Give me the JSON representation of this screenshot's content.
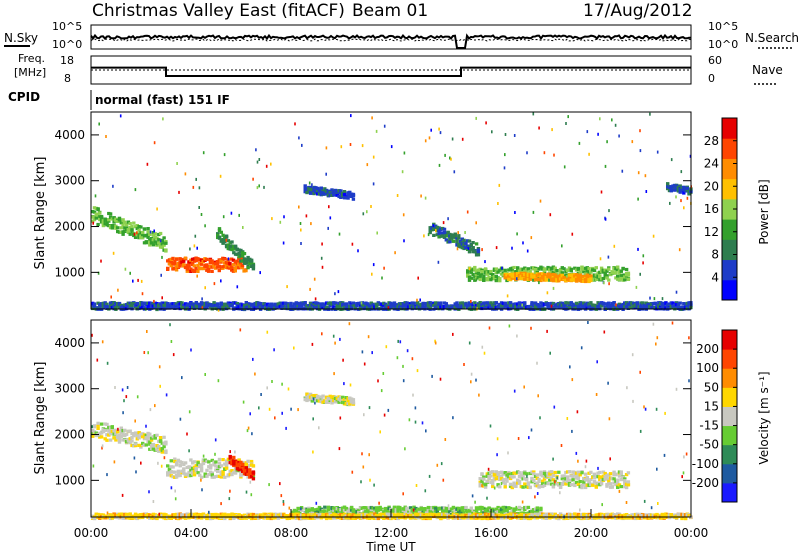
{
  "header": {
    "station": "Christmas Valley East (fitACF)",
    "beam": "Beam 01",
    "date": "17/Aug/2012"
  },
  "noise_panel": {
    "left_label": "N.Sky",
    "right_label": "N.Search",
    "left_ticks": [
      "10^5",
      "10^0"
    ],
    "right_ticks": [
      "10^5",
      "10^0"
    ]
  },
  "freq_panel": {
    "left_label_1": "Freq.",
    "left_label_2": "[MHz]",
    "right_label": "Nave",
    "left_ticks": [
      "18",
      "8"
    ],
    "right_ticks": [
      "60",
      "0"
    ]
  },
  "cpid": {
    "label": "CPID",
    "value": "normal (fast) 151 IF"
  },
  "power_panel": {
    "ylabel": "Slant Range [km]",
    "yticks": [
      "4000",
      "3000",
      "2000",
      "1000"
    ],
    "colorbar_label": "Power [dB]",
    "colorbar_ticks": [
      "28",
      "24",
      "20",
      "16",
      "12",
      "8",
      "4"
    ],
    "colors": [
      "#0000ff",
      "#1e3cc8",
      "#2e7d4f",
      "#33a02c",
      "#8fd14f",
      "#ffc000",
      "#ff8c00",
      "#ff4500",
      "#e60000"
    ]
  },
  "velocity_panel": {
    "ylabel": "Slant Range [km]",
    "yticks": [
      "4000",
      "3000",
      "2000",
      "1000"
    ],
    "colorbar_label": "Velocity [m s⁻¹]",
    "colorbar_ticks": [
      "200",
      "100",
      "50",
      "15",
      "-15",
      "-50",
      "-100",
      "-200"
    ],
    "colors": [
      "#1a1aff",
      "#1e5aa0",
      "#2e8b57",
      "#66cc33",
      "#c8c8c0",
      "#ffd700",
      "#ff8c00",
      "#ff4500",
      "#e60000"
    ]
  },
  "xaxis": {
    "label": "Time UT",
    "ticks": [
      "00:00",
      "04:00",
      "08:00",
      "12:00",
      "16:00",
      "20:00",
      "00:00"
    ]
  },
  "chart_data": {
    "type": "heatmap",
    "title": "Christmas Valley East (fitACF) Beam 01 17/Aug/2012",
    "xlabel": "Time UT",
    "ylabel": "Slant Range [km]",
    "x_range_hours": [
      0,
      24
    ],
    "y_range_km": [
      200,
      4500
    ],
    "frequency_mhz": [
      {
        "start_h": 0.0,
        "end_h": 3.0,
        "value": 14
      },
      {
        "start_h": 3.0,
        "end_h": 14.8,
        "value": 10.5
      },
      {
        "start_h": 14.8,
        "end_h": 24.0,
        "value": 14
      }
    ],
    "power_regions": [
      {
        "t0": 0.0,
        "t1": 3.0,
        "r_start": 2300,
        "r_end": 1650,
        "width_km": 350,
        "db": 14
      },
      {
        "t0": 3.0,
        "t1": 6.2,
        "r_start": 1200,
        "r_end": 1200,
        "width_km": 300,
        "db": 26
      },
      {
        "t0": 5.0,
        "t1": 6.5,
        "r_start": 1900,
        "r_end": 1100,
        "width_km": 250,
        "db": 10
      },
      {
        "t0": 8.5,
        "t1": 10.5,
        "r_start": 2850,
        "r_end": 2700,
        "width_km": 150,
        "db": 6
      },
      {
        "t0": 13.5,
        "t1": 15.5,
        "r_start": 2000,
        "r_end": 1500,
        "width_km": 250,
        "db": 8
      },
      {
        "t0": 15.0,
        "t1": 21.5,
        "r_start": 1000,
        "r_end": 1000,
        "width_km": 300,
        "db": 14
      },
      {
        "t0": 16.5,
        "t1": 20.0,
        "r_start": 950,
        "r_end": 900,
        "width_km": 150,
        "db": 22
      },
      {
        "t0": 23.0,
        "t1": 24.0,
        "r_start": 2900,
        "r_end": 2800,
        "width_km": 150,
        "db": 6
      },
      {
        "t0": 0.0,
        "t1": 24.0,
        "r_start": 300,
        "r_end": 300,
        "width_km": 150,
        "db": 6
      }
    ],
    "velocity_regions": [
      {
        "t0": 0.0,
        "t1": 3.0,
        "r_start": 2150,
        "r_end": 1800,
        "width_km": 350,
        "vel": 0
      },
      {
        "t0": 3.0,
        "t1": 6.5,
        "r_start": 1300,
        "r_end": 1300,
        "width_km": 400,
        "vel": 0
      },
      {
        "t0": 5.5,
        "t1": 6.5,
        "r_start": 1500,
        "r_end": 1100,
        "width_km": 200,
        "vel": 200
      },
      {
        "t0": 15.5,
        "t1": 21.5,
        "r_start": 1050,
        "r_end": 1050,
        "width_km": 350,
        "vel": 0
      },
      {
        "t0": 8.5,
        "t1": 10.5,
        "r_start": 2850,
        "r_end": 2750,
        "width_km": 150,
        "vel": 0
      },
      {
        "t0": 8.0,
        "t1": 18.0,
        "r_start": 350,
        "r_end": 350,
        "width_km": 200,
        "vel": -50
      },
      {
        "t0": 0.0,
        "t1": 24.0,
        "r_start": 250,
        "r_end": 250,
        "width_km": 100,
        "vel": 50
      }
    ]
  }
}
